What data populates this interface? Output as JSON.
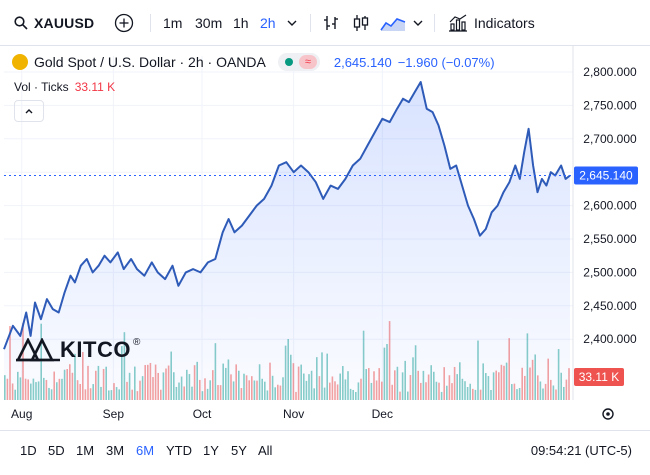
{
  "toolbar": {
    "symbol": "XAUUSD",
    "intervals": [
      "1m",
      "30m",
      "1h",
      "2h"
    ],
    "active_interval": "2h",
    "indicators_label": "Indicators"
  },
  "legend": {
    "title": "Gold Spot / U.S. Dollar · 2h · OANDA",
    "price": "2,645.140",
    "change": "−1.960 (−0.07%)",
    "vol_label": "Vol · Ticks",
    "vol_value": "33.11 K"
  },
  "logo_text": "KITCO",
  "bottom": {
    "ranges": [
      "1D",
      "5D",
      "1M",
      "3M",
      "6M",
      "YTD",
      "1Y",
      "5Y",
      "All"
    ],
    "active_range": "6M",
    "clock": "09:54:21 (UTC-5)"
  },
  "colors": {
    "line": "#2f5bb8",
    "up": "#26a69a",
    "down": "#ef5350",
    "accent": "#2962ff"
  },
  "chart_data": {
    "type": "area",
    "title": "Gold Spot / U.S. Dollar · 2h · OANDA",
    "x_labels": [
      "Aug",
      "Sep",
      "Oct",
      "Nov",
      "Dec"
    ],
    "y_ticks": [
      "2,800.000",
      "2,750.000",
      "2,700.000",
      "2,650.000",
      "2,600.000",
      "2,550.000",
      "2,500.000",
      "2,450.000",
      "2,400.000"
    ],
    "ylim": [
      2360,
      2810
    ],
    "last_price": 2645.14,
    "last_price_label": "2,645.140",
    "volume_label": "33.11 K",
    "series": [
      {
        "points": [
          [
            0.0,
            2385
          ],
          [
            3.0,
            2420
          ],
          [
            5.5,
            2405
          ],
          [
            7.5,
            2440
          ],
          [
            9.0,
            2405
          ],
          [
            10.5,
            2455
          ],
          [
            12.5,
            2430
          ],
          [
            14.5,
            2460
          ],
          [
            16.5,
            2445
          ],
          [
            18.5,
            2440
          ],
          [
            20.5,
            2470
          ],
          [
            22.5,
            2495
          ],
          [
            24.0,
            2485
          ],
          [
            26.0,
            2510
          ],
          [
            28.0,
            2520
          ],
          [
            30.0,
            2500
          ],
          [
            32.0,
            2510
          ],
          [
            34.0,
            2525
          ],
          [
            36.0,
            2515
          ],
          [
            38.5,
            2530
          ],
          [
            40.5,
            2505
          ],
          [
            43.0,
            2520
          ],
          [
            45.0,
            2505
          ],
          [
            47.5,
            2495
          ],
          [
            50.0,
            2515
          ],
          [
            52.0,
            2500
          ],
          [
            54.5,
            2490
          ],
          [
            57.0,
            2510
          ],
          [
            59.0,
            2480
          ],
          [
            61.5,
            2500
          ],
          [
            64.0,
            2505
          ],
          [
            66.5,
            2500
          ],
          [
            69.0,
            2515
          ],
          [
            71.5,
            2520
          ],
          [
            74.0,
            2560
          ],
          [
            76.0,
            2580
          ],
          [
            78.0,
            2560
          ],
          [
            80.5,
            2570
          ],
          [
            83.0,
            2585
          ],
          [
            85.5,
            2600
          ],
          [
            88.0,
            2610
          ],
          [
            90.5,
            2630
          ],
          [
            93.0,
            2660
          ],
          [
            95.5,
            2665
          ],
          [
            98.0,
            2650
          ],
          [
            100.5,
            2660
          ],
          [
            103.0,
            2650
          ],
          [
            105.5,
            2635
          ],
          [
            108.0,
            2610
          ],
          [
            110.5,
            2630
          ],
          [
            113.0,
            2625
          ],
          [
            115.5,
            2640
          ],
          [
            118.0,
            2660
          ],
          [
            120.5,
            2670
          ],
          [
            123.0,
            2690
          ],
          [
            125.5,
            2710
          ],
          [
            128.0,
            2730
          ],
          [
            130.5,
            2725
          ],
          [
            133.0,
            2745
          ],
          [
            135.0,
            2760
          ],
          [
            137.0,
            2755
          ],
          [
            139.0,
            2770
          ],
          [
            141.0,
            2785
          ],
          [
            143.0,
            2745
          ],
          [
            145.0,
            2740
          ],
          [
            147.0,
            2720
          ],
          [
            149.0,
            2690
          ],
          [
            151.0,
            2655
          ],
          [
            153.0,
            2660
          ],
          [
            155.0,
            2630
          ],
          [
            157.0,
            2600
          ],
          [
            159.0,
            2580
          ],
          [
            161.0,
            2555
          ],
          [
            163.0,
            2565
          ],
          [
            165.0,
            2590
          ],
          [
            167.0,
            2600
          ],
          [
            169.0,
            2620
          ],
          [
            171.0,
            2635
          ],
          [
            173.0,
            2660
          ],
          [
            174.5,
            2640
          ],
          [
            176.0,
            2680
          ],
          [
            177.5,
            2715
          ],
          [
            179.0,
            2660
          ],
          [
            180.5,
            2620
          ],
          [
            182.0,
            2640
          ],
          [
            183.5,
            2630
          ],
          [
            185.0,
            2650
          ],
          [
            186.5,
            2645
          ],
          [
            188.5,
            2660
          ],
          [
            190.0,
            2640
          ],
          [
            191.5,
            2645
          ]
        ]
      }
    ]
  }
}
